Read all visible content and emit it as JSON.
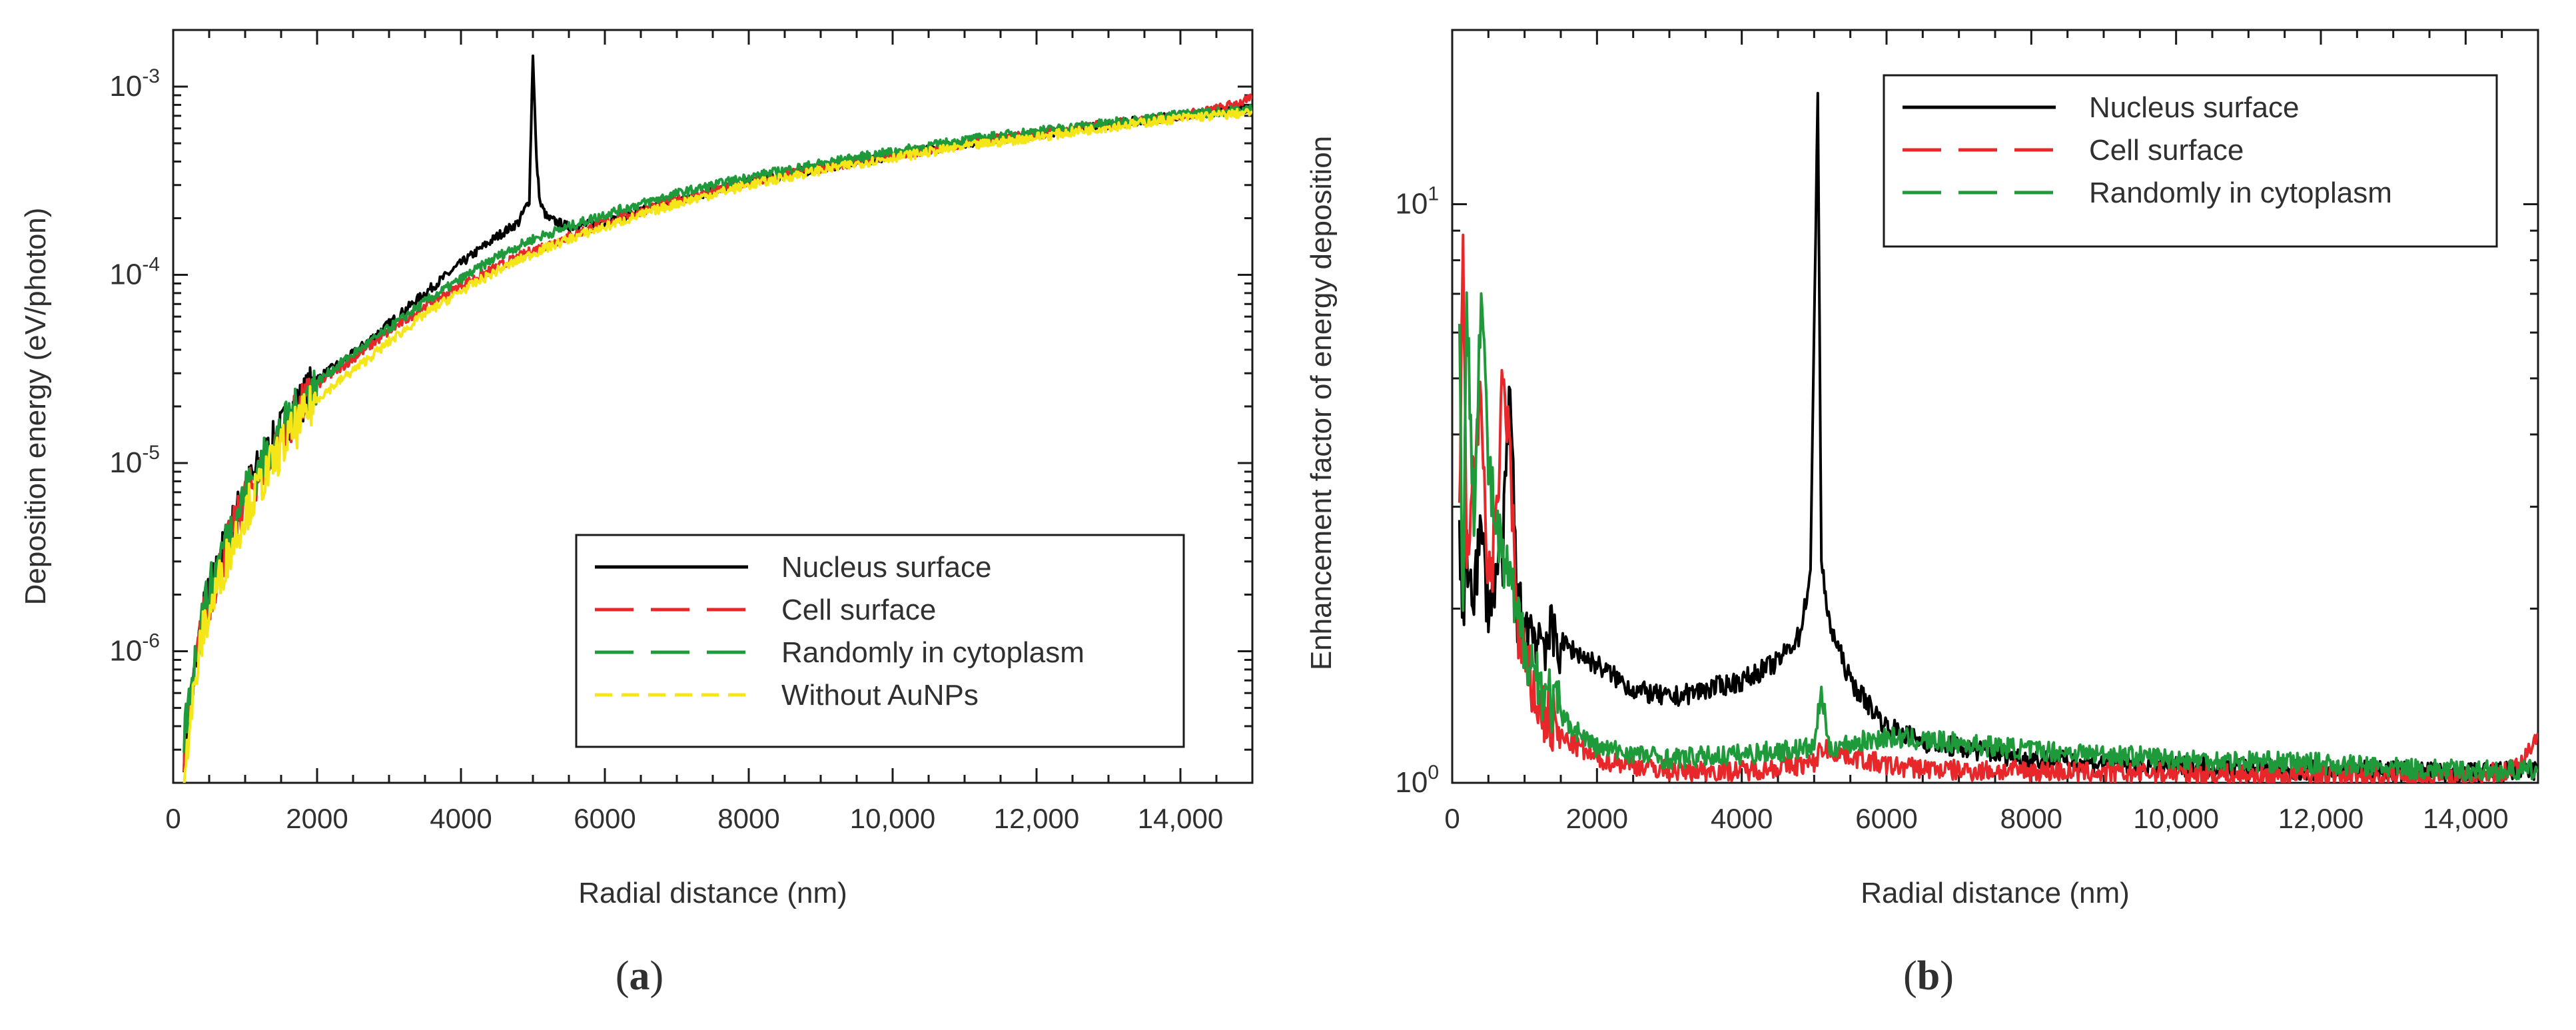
{
  "chart_data": [
    {
      "id": "a",
      "type": "line",
      "panel_label": "a",
      "xlabel": "Radial distance (nm)",
      "ylabel": "Deposition energy (eV/photon)",
      "xlim": [
        0,
        15000
      ],
      "ylim": [
        2e-07,
        0.002
      ],
      "y_scale": "log",
      "x_ticks": [
        0,
        2000,
        4000,
        6000,
        8000,
        10000,
        12000,
        14000
      ],
      "x_tick_labels": [
        "0",
        "2000",
        "4000",
        "6000",
        "8000",
        "10,000",
        "12,000",
        "14,000"
      ],
      "y_ticks": [
        1e-06,
        1e-05,
        0.0001,
        0.001
      ],
      "y_tick_labels": [
        {
          "base": "10",
          "exp": "-6"
        },
        {
          "base": "10",
          "exp": "-5"
        },
        {
          "base": "10",
          "exp": "-4"
        },
        {
          "base": "10",
          "exp": "-3"
        }
      ],
      "grid": false,
      "legend_position": "bottom-right",
      "series": [
        {
          "name": "Nucleus surface",
          "color": "#000000",
          "dash": "solid",
          "x": [
            150,
            400,
            700,
            1000,
            1500,
            2000,
            2500,
            3000,
            3500,
            4000,
            4500,
            4800,
            4950,
            5000,
            5050,
            5100,
            5200,
            5500,
            6000,
            7000,
            8000,
            9000,
            10000,
            11000,
            12000,
            13000,
            14000,
            15000
          ],
          "y": [
            3e-07,
            1.5e-06,
            3.5e-06,
            7e-06,
            1.5e-05,
            2.8e-05,
            3.8e-05,
            5.5e-05,
            8e-05,
            0.000115,
            0.00016,
            0.00019,
            0.00025,
            0.0015,
            0.0004,
            0.00024,
            0.0002,
            0.00018,
            0.00019,
            0.00025,
            0.00031,
            0.00037,
            0.00043,
            0.0005,
            0.00056,
            0.00063,
            0.0007,
            0.00078
          ]
        },
        {
          "name": "Cell surface",
          "color": "#e8272a",
          "dash": "long-dash",
          "x": [
            150,
            400,
            700,
            1000,
            1500,
            2000,
            2500,
            3000,
            3500,
            4000,
            4500,
            5000,
            5500,
            6000,
            7000,
            8000,
            9000,
            10000,
            11000,
            12000,
            13000,
            14000,
            14500,
            15000
          ],
          "y": [
            3e-07,
            1.4e-06,
            3.2e-06,
            6.5e-06,
            1.4e-05,
            2.6e-05,
            3.6e-05,
            5e-05,
            6.8e-05,
            8.8e-05,
            0.00011,
            0.000135,
            0.00016,
            0.00019,
            0.00025,
            0.00031,
            0.00037,
            0.00043,
            0.0005,
            0.00056,
            0.00063,
            0.0007,
            0.00076,
            0.00086
          ]
        },
        {
          "name": "Randomly in cytoplasm",
          "color": "#1e9a3a",
          "dash": "long-dash",
          "x": [
            150,
            400,
            700,
            1000,
            1500,
            2000,
            2500,
            3000,
            3500,
            4000,
            4500,
            5000,
            5500,
            6000,
            7000,
            8000,
            9000,
            10000,
            11000,
            12000,
            13000,
            14000,
            15000
          ],
          "y": [
            3.5e-07,
            1.6e-06,
            3.6e-06,
            7e-06,
            1.5e-05,
            2.7e-05,
            3.8e-05,
            5.2e-05,
            7.2e-05,
            9.5e-05,
            0.000125,
            0.000155,
            0.00018,
            0.00021,
            0.00027,
            0.00033,
            0.00039,
            0.00045,
            0.00052,
            0.00058,
            0.00064,
            0.00071,
            0.00076
          ]
        },
        {
          "name": "Without AuNPs",
          "color": "#f5e61a",
          "dash": "dash",
          "x": [
            150,
            400,
            700,
            1000,
            1500,
            2000,
            2500,
            3000,
            3500,
            4000,
            4500,
            5000,
            5500,
            6000,
            7000,
            8000,
            9000,
            10000,
            11000,
            12000,
            13000,
            14000,
            15000
          ],
          "y": [
            2.5e-07,
            1.2e-06,
            2.8e-06,
            5.5e-06,
            1.2e-05,
            2.2e-05,
            3.1e-05,
            4.4e-05,
            6.2e-05,
            8.2e-05,
            0.000105,
            0.00013,
            0.000155,
            0.00018,
            0.00024,
            0.0003,
            0.00036,
            0.00042,
            0.00048,
            0.00054,
            0.00061,
            0.00068,
            0.00073
          ]
        }
      ]
    },
    {
      "id": "b",
      "type": "line",
      "panel_label": "b",
      "xlabel": "Radial distance (nm)",
      "ylabel": "Enhancement factor of energy deposition",
      "xlim": [
        0,
        15000
      ],
      "ylim": [
        1,
        20
      ],
      "y_scale": "log",
      "x_ticks": [
        0,
        2000,
        4000,
        6000,
        8000,
        10000,
        12000,
        14000
      ],
      "x_tick_labels": [
        "0",
        "2000",
        "4000",
        "6000",
        "8000",
        "10,000",
        "12,000",
        "14,000"
      ],
      "y_ticks": [
        1,
        10
      ],
      "y_tick_labels": [
        {
          "base": "10",
          "exp": "0"
        },
        {
          "base": "10",
          "exp": "1"
        }
      ],
      "grid": false,
      "legend_position": "top-right",
      "series": [
        {
          "name": "Nucleus surface",
          "color": "#000000",
          "dash": "solid",
          "x": [
            100,
            150,
            200,
            300,
            400,
            500,
            600,
            700,
            800,
            900,
            1000,
            1200,
            1500,
            2000,
            2500,
            3000,
            3500,
            4000,
            4500,
            4800,
            4950,
            5050,
            5100,
            5200,
            5500,
            6000,
            6500,
            7000,
            8000,
            9000,
            10000,
            11000,
            12000,
            13000,
            14000,
            15000
          ],
          "y": [
            2.5,
            2.0,
            2.4,
            2.2,
            2.7,
            2.0,
            2.3,
            2.5,
            4.8,
            2.0,
            1.9,
            1.8,
            1.75,
            1.6,
            1.45,
            1.4,
            1.45,
            1.5,
            1.62,
            1.8,
            2.3,
            16.0,
            2.4,
            1.9,
            1.5,
            1.25,
            1.18,
            1.15,
            1.1,
            1.08,
            1.07,
            1.06,
            1.05,
            1.05,
            1.04,
            1.05
          ]
        },
        {
          "name": "Cell surface",
          "color": "#e8272a",
          "dash": "long-dash",
          "x": [
            100,
            150,
            200,
            300,
            400,
            500,
            600,
            700,
            800,
            900,
            1000,
            1200,
            1500,
            2000,
            3000,
            4000,
            5000,
            5100,
            6000,
            7000,
            8000,
            9000,
            10000,
            11000,
            12000,
            13000,
            14000,
            14600,
            14800,
            15000
          ],
          "y": [
            3.0,
            8.4,
            2.5,
            3.5,
            4.5,
            2.2,
            2.6,
            5.0,
            3.8,
            1.8,
            1.6,
            1.35,
            1.2,
            1.1,
            1.05,
            1.05,
            1.08,
            1.15,
            1.07,
            1.05,
            1.05,
            1.04,
            1.04,
            1.03,
            1.03,
            1.03,
            1.02,
            1.05,
            1.1,
            1.22
          ]
        },
        {
          "name": "Randomly in cytoplasm",
          "color": "#1e9a3a",
          "dash": "long-dash",
          "x": [
            100,
            150,
            200,
            300,
            400,
            500,
            600,
            700,
            800,
            900,
            1000,
            1200,
            1500,
            2000,
            3000,
            4000,
            5000,
            5100,
            5200,
            6000,
            7000,
            8000,
            9000,
            10000,
            11000,
            12000,
            13000,
            14000,
            15000
          ],
          "y": [
            5.8,
            2.0,
            6.5,
            3.0,
            7.3,
            3.5,
            2.8,
            2.4,
            2.2,
            1.9,
            1.75,
            1.5,
            1.3,
            1.15,
            1.1,
            1.12,
            1.15,
            1.45,
            1.15,
            1.2,
            1.17,
            1.14,
            1.12,
            1.1,
            1.09,
            1.08,
            1.06,
            1.05,
            1.05
          ]
        }
      ]
    }
  ]
}
